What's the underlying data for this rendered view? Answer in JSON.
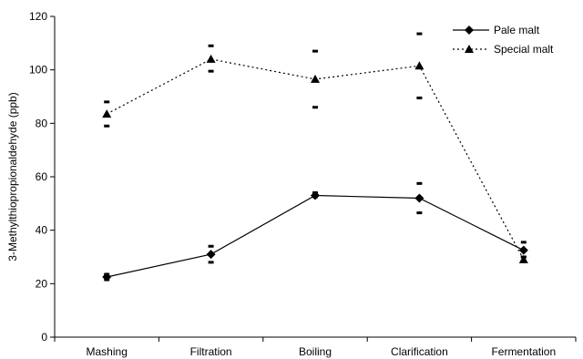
{
  "chart_data": {
    "type": "line",
    "title": "",
    "xlabel": "",
    "ylabel": "3-Methylthiopropionaldehyde (ppb)",
    "categories": [
      "Mashing",
      "Filtration",
      "Boiling",
      "Clarification",
      "Fermentation"
    ],
    "ylim": [
      0,
      120
    ],
    "yticks": [
      0,
      20,
      40,
      60,
      80,
      100,
      120
    ],
    "grid": false,
    "legend_position": "top-right",
    "series": [
      {
        "name": "Pale malt",
        "marker": "diamond",
        "line_style": "solid",
        "color": "#000000",
        "values": [
          22.5,
          31,
          53,
          52,
          32.5
        ],
        "error_low": [
          21.5,
          28,
          52.5,
          46.5,
          30
        ],
        "error_high": [
          23.5,
          34,
          54,
          57.5,
          35.5
        ]
      },
      {
        "name": "Special malt",
        "marker": "triangle",
        "line_style": "dotted",
        "color": "#000000",
        "values": [
          83.5,
          104,
          96.5,
          101.5,
          29
        ],
        "error_low": [
          79,
          99.5,
          86,
          89.5,
          28.5
        ],
        "error_high": [
          88,
          109,
          107,
          113.5,
          30
        ]
      }
    ]
  }
}
